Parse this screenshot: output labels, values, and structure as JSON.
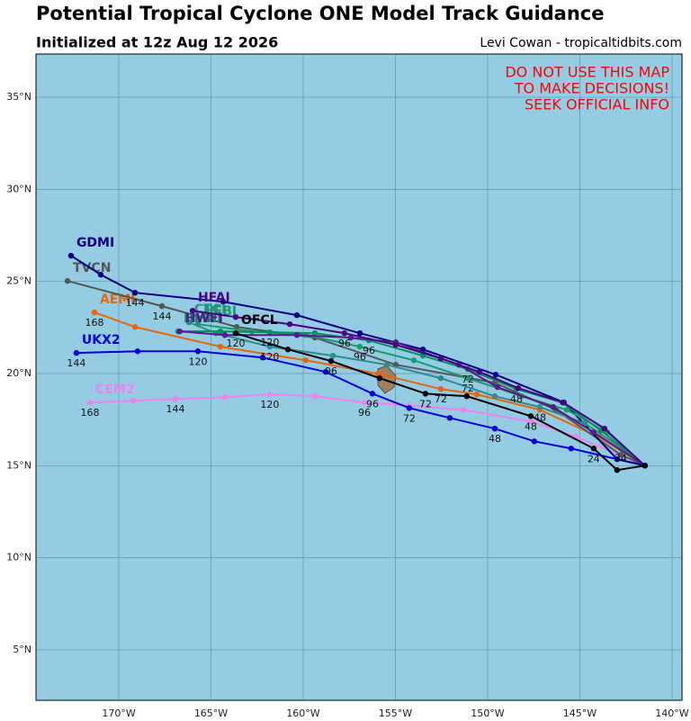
{
  "header": {
    "title": "Potential Tropical Cyclone ONE Model Track Guidance",
    "subtitle": "Initialized at 12z Aug 12 2026",
    "credit": "Levi Cowan - tropicaltidbits.com"
  },
  "warning": [
    "DO NOT USE THIS MAP",
    "TO MAKE DECISIONS!",
    "SEEK OFFICIAL INFO"
  ],
  "map": {
    "xlim": [
      -174.49,
      -139.46
    ],
    "ylim": [
      2.26,
      37.35
    ],
    "xticks": [
      {
        "value": -170,
        "label": "170°W"
      },
      {
        "value": -165,
        "label": "165°W"
      },
      {
        "value": -160,
        "label": "160°W"
      },
      {
        "value": -155,
        "label": "155°W"
      },
      {
        "value": -150,
        "label": "150°W"
      },
      {
        "value": -145,
        "label": "145°W"
      },
      {
        "value": -140,
        "label": "140°W"
      }
    ],
    "yticks": [
      {
        "value": 5,
        "label": "5°N"
      },
      {
        "value": 10,
        "label": "10°N"
      },
      {
        "value": 15,
        "label": "15°N"
      },
      {
        "value": 20,
        "label": "20°N"
      },
      {
        "value": 25,
        "label": "25°N"
      },
      {
        "value": 30,
        "label": "30°N"
      },
      {
        "value": 35,
        "label": "35°N"
      }
    ],
    "grid": true,
    "ocean_color": "#94cde3"
  },
  "tracks": [
    {
      "name": "CEM2",
      "color": "#ee82ee",
      "lon": [
        -141.47,
        -145.22,
        -147.66,
        -151.32,
        -154.25,
        -156.68,
        -159.37,
        -161.81,
        -164.25,
        -166.93,
        -169.22,
        -171.56
      ],
      "lat": [
        15.0,
        16.57,
        17.4,
        18.03,
        18.28,
        18.43,
        18.77,
        18.87,
        18.72,
        18.62,
        18.52,
        18.43
      ],
      "labels": [
        null,
        null,
        null,
        null,
        null,
        "96",
        null,
        "120",
        null,
        "144",
        null,
        "168"
      ]
    },
    {
      "name": "UKX2",
      "color": "#0000dd",
      "lon": [
        -141.47,
        -145.47,
        -147.47,
        -149.61,
        -152.05,
        -154.25,
        -156.25,
        -158.78,
        -162.2,
        -165.71,
        -168.98,
        -172.3
      ],
      "lat": [
        15.0,
        15.93,
        16.32,
        17.01,
        17.59,
        18.13,
        18.91,
        20.09,
        20.87,
        21.21,
        21.21,
        21.12
      ],
      "labels": [
        null,
        null,
        null,
        "48",
        null,
        "72",
        "96",
        null,
        null,
        "120",
        null,
        "144"
      ]
    },
    {
      "name": "AEMI",
      "color": "#e8650a",
      "lon": [
        -141.47,
        -144.0,
        -147.17,
        -150.59,
        -152.54,
        -155.95,
        -159.86,
        -164.49,
        -169.12,
        -171.32
      ],
      "lat": [
        15.0,
        16.57,
        18.03,
        18.87,
        19.16,
        19.99,
        20.72,
        21.46,
        22.53,
        23.32
      ],
      "labels": [
        null,
        null,
        null,
        null,
        "72",
        null,
        null,
        null,
        null,
        "168"
      ]
    },
    {
      "name": "TVCN",
      "color": "#555555",
      "lon": [
        -141.47,
        -142.78,
        -146.3,
        -149.61,
        -154.98,
        -159.37,
        -163.61,
        -167.66,
        -172.78
      ],
      "lat": [
        15.0,
        15.59,
        18.03,
        19.5,
        20.48,
        21.95,
        22.53,
        23.66,
        25.03
      ],
      "labels": [
        null,
        null,
        null,
        null,
        null,
        null,
        null,
        "144",
        null
      ]
    },
    {
      "name": "GDMI",
      "color": "#000080",
      "lon": [
        -141.47,
        -142.98,
        -145.86,
        -149.56,
        -153.51,
        -156.93,
        -160.34,
        -164.34,
        -169.12,
        -170.98,
        -172.59
      ],
      "lat": [
        15.0,
        15.35,
        18.43,
        19.94,
        21.31,
        22.19,
        23.17,
        23.9,
        24.39,
        25.37,
        26.4
      ],
      "labels": [
        null,
        null,
        null,
        null,
        null,
        null,
        null,
        null,
        "144",
        null,
        null
      ]
    },
    {
      "name": "HFBI",
      "color": "#1a9a6a",
      "lon": [
        -141.47,
        -143.51,
        -145.71,
        -148.15,
        -151.08,
        -154.0,
        -156.93,
        -159.86,
        -162.78,
        -165.71
      ],
      "lat": [
        15.0,
        16.81,
        18.03,
        18.77,
        19.75,
        20.72,
        21.46,
        22.09,
        22.29,
        22.68
      ],
      "labels": [
        null,
        null,
        null,
        null,
        "72",
        null,
        "96",
        null,
        null,
        null
      ]
    },
    {
      "name": "CTCI",
      "color": "#2e8b8b",
      "lon": [
        -141.47,
        -142.78,
        -144.73,
        -147.17,
        -149.61,
        -152.54,
        -155.46,
        -158.39,
        -161.81,
        -164.73,
        -166.2
      ],
      "lat": [
        15.0,
        15.98,
        17.3,
        18.18,
        18.77,
        19.75,
        20.48,
        20.97,
        21.46,
        22.19,
        22.78
      ],
      "labels": [
        null,
        "24",
        null,
        "48",
        null,
        null,
        null,
        null,
        "120",
        null,
        null
      ]
    },
    {
      "name": "HMNI",
      "color": "#009060",
      "lon": [
        -141.47,
        -143.86,
        -145.95,
        -148.44,
        -151.08,
        -153.51,
        -156.44,
        -159.37,
        -161.81,
        -164.49,
        -166.78
      ],
      "lat": [
        15.0,
        16.91,
        18.43,
        19.16,
        20.24,
        20.97,
        21.8,
        22.19,
        22.24,
        22.29,
        22.29
      ],
      "labels": [
        null,
        null,
        null,
        "48",
        "72",
        null,
        "96",
        null,
        "120",
        null,
        null
      ]
    },
    {
      "name": "HWFI",
      "color": "#551a8b",
      "lon": [
        -141.47,
        -144.25,
        -146.44,
        -149.46,
        -151.56,
        -154.98,
        -157.42,
        -160.34,
        -164.25,
        -166.69
      ],
      "lat": [
        15.0,
        16.81,
        18.18,
        19.26,
        20.48,
        21.7,
        21.95,
        22.09,
        22.09,
        22.29
      ],
      "labels": [
        null,
        null,
        null,
        null,
        null,
        null,
        null,
        null,
        null,
        null
      ]
    },
    {
      "name": "HFAI",
      "color": "#4b0082",
      "lon": [
        -141.47,
        -143.66,
        -145.9,
        -148.34,
        -150.44,
        -152.54,
        -154.98,
        -157.76,
        -160.73,
        -163.66,
        -166.0
      ],
      "lat": [
        15.0,
        17.01,
        18.43,
        19.21,
        20.09,
        20.82,
        21.56,
        22.19,
        22.68,
        23.07,
        23.41
      ],
      "labels": [
        null,
        null,
        null,
        null,
        null,
        null,
        null,
        "96",
        null,
        null,
        null
      ]
    },
    {
      "name": "OFCL",
      "color": "#000000",
      "lon": [
        -141.47,
        -142.98,
        -144.25,
        -147.66,
        -151.13,
        -153.37,
        -155.86,
        -158.49,
        -160.83,
        -163.66
      ],
      "lat": [
        15.0,
        14.76,
        15.93,
        17.69,
        18.77,
        18.91,
        19.75,
        20.68,
        21.31,
        22.19
      ],
      "labels": [
        null,
        null,
        "24",
        "48",
        null,
        "72",
        null,
        "96",
        null,
        "120"
      ]
    }
  ]
}
